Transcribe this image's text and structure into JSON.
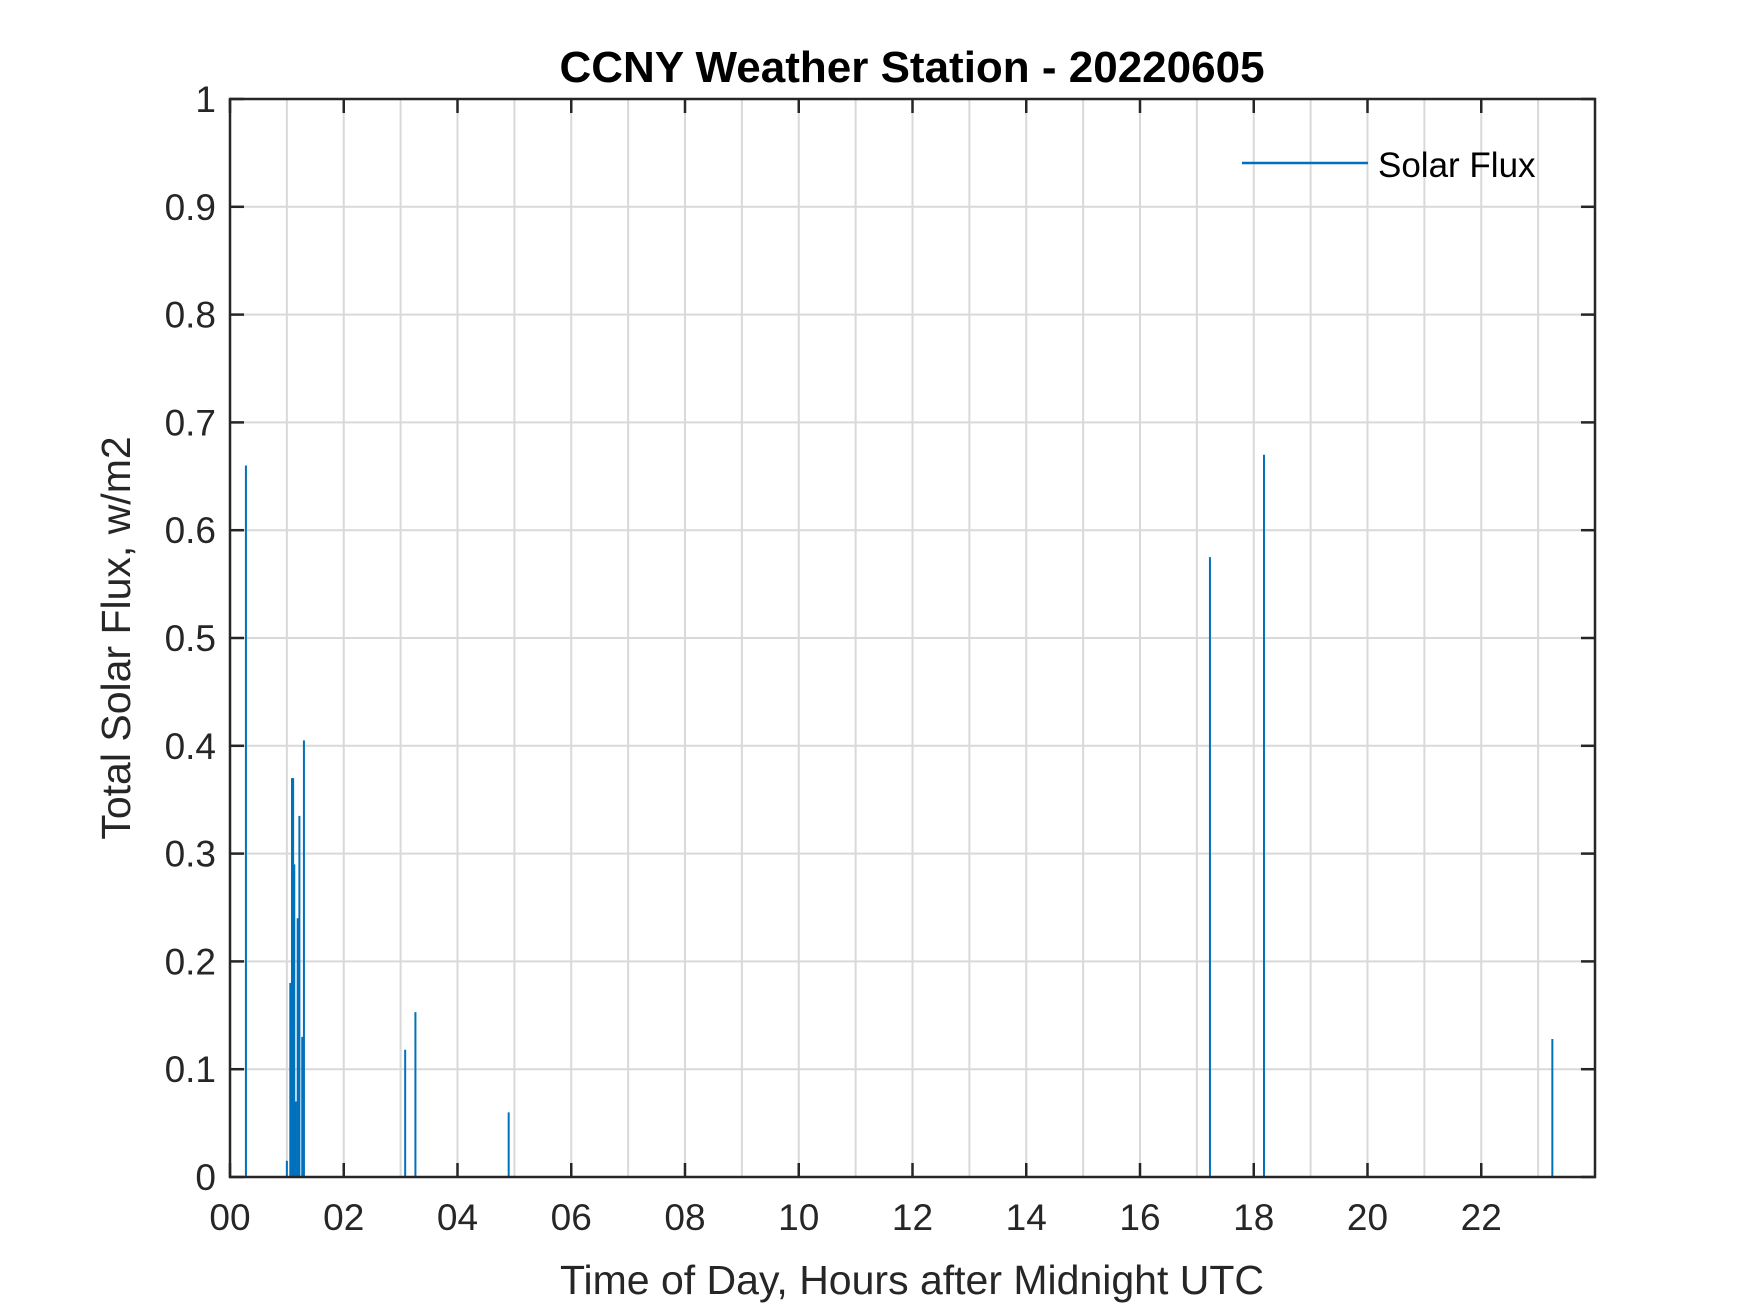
{
  "chart_data": {
    "type": "line",
    "title": "CCNY Weather Station - 20220605",
    "xlabel": "Time of Day, Hours after Midnight UTC",
    "ylabel": "Total Solar Flux, w/m2",
    "xlim": [
      0,
      24
    ],
    "ylim": [
      0,
      1
    ],
    "grid": true,
    "legend_position": "top-right",
    "x_ticks": [
      0,
      2,
      4,
      6,
      8,
      10,
      12,
      14,
      16,
      18,
      20,
      22
    ],
    "x_tick_labels": [
      "00",
      "02",
      "04",
      "06",
      "08",
      "10",
      "12",
      "14",
      "16",
      "18",
      "20",
      "22"
    ],
    "y_ticks": [
      0,
      0.1,
      0.2,
      0.3,
      0.4,
      0.5,
      0.6,
      0.7,
      0.8,
      0.9,
      1
    ],
    "y_tick_labels": [
      "0",
      "0.1",
      "0.2",
      "0.3",
      "0.4",
      "0.5",
      "0.6",
      "0.7",
      "0.8",
      "0.9",
      "1"
    ],
    "series": [
      {
        "name": "Solar Flux",
        "color": "#0072bd",
        "spikes": [
          {
            "x": 0.28,
            "y": 0.66
          },
          {
            "x": 1.0,
            "y": 0.015
          },
          {
            "x": 1.06,
            "y": 0.18
          },
          {
            "x": 1.09,
            "y": 0.37
          },
          {
            "x": 1.11,
            "y": 0.37
          },
          {
            "x": 1.13,
            "y": 0.29
          },
          {
            "x": 1.16,
            "y": 0.07
          },
          {
            "x": 1.19,
            "y": 0.24
          },
          {
            "x": 1.22,
            "y": 0.335
          },
          {
            "x": 1.27,
            "y": 0.13
          },
          {
            "x": 1.3,
            "y": 0.405
          },
          {
            "x": 3.08,
            "y": 0.118
          },
          {
            "x": 3.26,
            "y": 0.153
          },
          {
            "x": 4.9,
            "y": 0.06
          },
          {
            "x": 17.23,
            "y": 0.575
          },
          {
            "x": 18.18,
            "y": 0.67
          },
          {
            "x": 23.25,
            "y": 0.128
          }
        ]
      }
    ]
  }
}
